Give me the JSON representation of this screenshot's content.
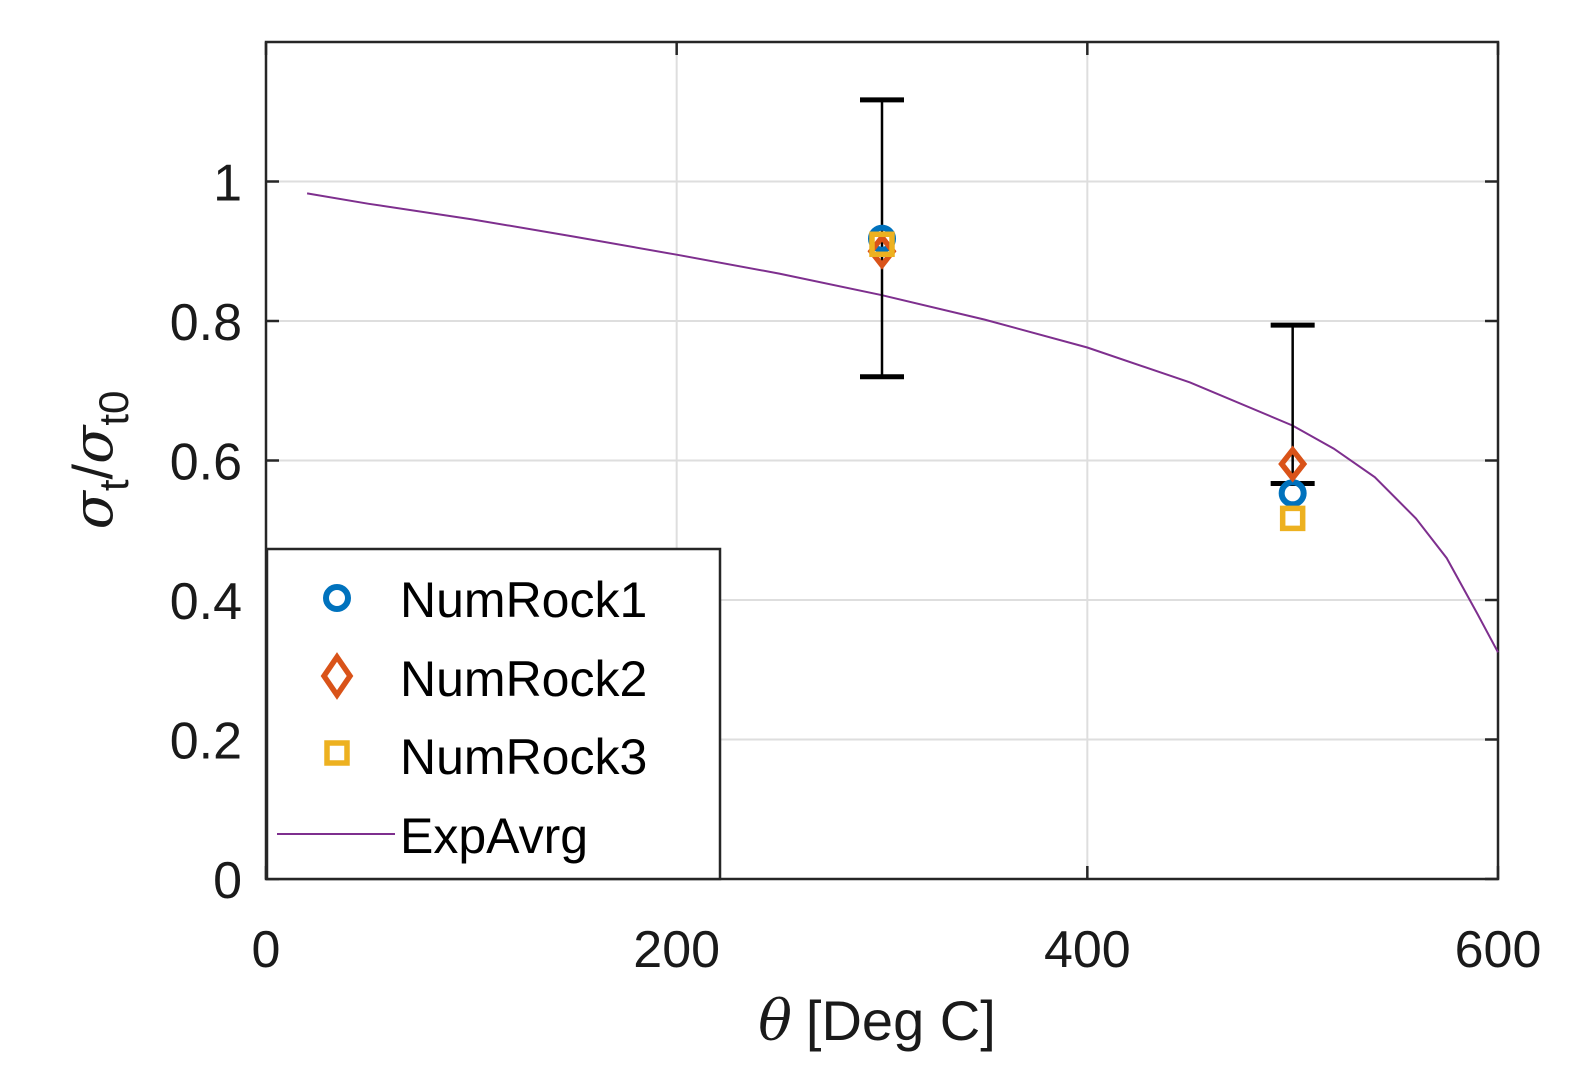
{
  "chart_data": {
    "type": "scatter",
    "title": "",
    "xlabel": {
      "symbol": "θ",
      "text": "[Deg C]"
    },
    "ylabel": {
      "numer_symbol": "σ",
      "numer_sub": "t",
      "sep": "/",
      "denom_symbol": "σ",
      "denom_sub": "t0"
    },
    "xlim": [
      0,
      600
    ],
    "ylim": [
      0,
      1.2
    ],
    "xticks": [
      0,
      200,
      400,
      600
    ],
    "xtick_labels": [
      "0",
      "200",
      "400",
      "600"
    ],
    "yticks": [
      0,
      0.2,
      0.4,
      0.6,
      0.8,
      1.0
    ],
    "ytick_labels": [
      "0",
      "0.2",
      "0.4",
      "0.6",
      "0.8",
      "1"
    ],
    "grid": true,
    "legend_position": "bottom-left",
    "series": [
      {
        "name": "NumRock1",
        "marker": "circle",
        "color": "#0072BD",
        "x": [
          300,
          500
        ],
        "y": [
          0.918,
          0.553
        ]
      },
      {
        "name": "NumRock2",
        "marker": "diamond",
        "color": "#D95319",
        "x": [
          300,
          500
        ],
        "y": [
          0.9,
          0.595
        ]
      },
      {
        "name": "NumRock3",
        "marker": "square",
        "color": "#EDB120",
        "x": [
          300,
          500
        ],
        "y": [
          0.91,
          0.517
        ]
      },
      {
        "name": "ExpAvrg",
        "marker": "line",
        "color": "#7E2F8E",
        "x": [
          20,
          50,
          100,
          150,
          200,
          250,
          300,
          350,
          400,
          450,
          500,
          520,
          540,
          560,
          575,
          590,
          600
        ],
        "y": [
          0.983,
          0.968,
          0.946,
          0.921,
          0.895,
          0.868,
          0.837,
          0.802,
          0.762,
          0.712,
          0.65,
          0.617,
          0.576,
          0.517,
          0.46,
          0.38,
          0.325
        ]
      }
    ],
    "error_bars": [
      {
        "x": 300,
        "low": 0.72,
        "high": 1.117,
        "color": "#000000"
      },
      {
        "x": 500,
        "low": 0.567,
        "high": 0.794,
        "color": "#000000"
      }
    ]
  }
}
